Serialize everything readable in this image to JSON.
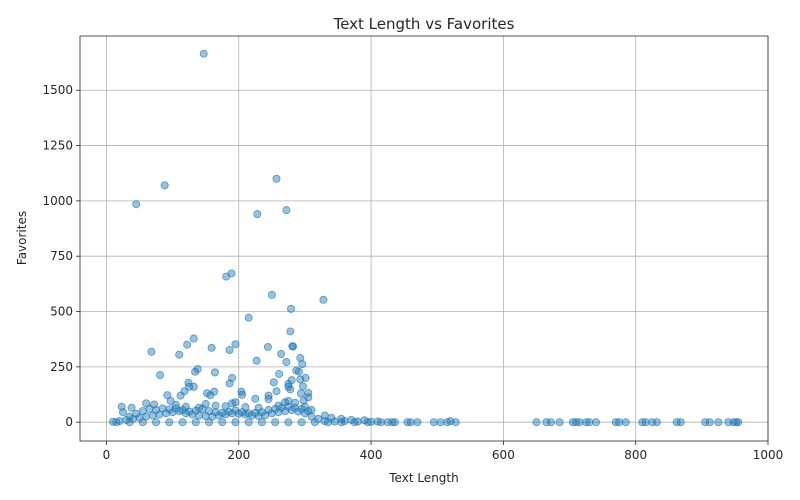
{
  "chart_data": {
    "type": "scatter",
    "title": "Text Length vs Favorites",
    "xlabel": "Text Length",
    "ylabel": "Favorites",
    "xlim": [
      -40,
      1000
    ],
    "ylim": [
      -85,
      1745
    ],
    "xticks": [
      0,
      200,
      400,
      600,
      800,
      1000
    ],
    "yticks": [
      0,
      250,
      500,
      750,
      1000,
      1250,
      1500
    ],
    "xtick_labels": [
      "0",
      "200",
      "400",
      "600",
      "800",
      "1000"
    ],
    "ytick_labels": [
      "0",
      "250",
      "500",
      "750",
      "1000",
      "1250",
      "1500"
    ],
    "grid": true,
    "marker_color": "#1f77b4",
    "marker_alpha": 0.45,
    "points": [
      [
        147,
        1665
      ],
      [
        257,
        1100
      ],
      [
        88,
        1070
      ],
      [
        45,
        985
      ],
      [
        228,
        940
      ],
      [
        272,
        958
      ],
      [
        189,
        672
      ],
      [
        181,
        658
      ],
      [
        250,
        575
      ],
      [
        328,
        553
      ],
      [
        279,
        512
      ],
      [
        215,
        472
      ],
      [
        278,
        410
      ],
      [
        132,
        378
      ],
      [
        281,
        343
      ],
      [
        282,
        342
      ],
      [
        195,
        352
      ],
      [
        244,
        340
      ],
      [
        122,
        350
      ],
      [
        159,
        336
      ],
      [
        68,
        318
      ],
      [
        110,
        305
      ],
      [
        186,
        326
      ],
      [
        264,
        308
      ],
      [
        293,
        290
      ],
      [
        296,
        262
      ],
      [
        272,
        272
      ],
      [
        227,
        278
      ],
      [
        138,
        240
      ],
      [
        134,
        228
      ],
      [
        164,
        225
      ],
      [
        261,
        218
      ],
      [
        81,
        213
      ],
      [
        287,
        234
      ],
      [
        291,
        228
      ],
      [
        301,
        200
      ],
      [
        190,
        200
      ],
      [
        293,
        193
      ],
      [
        280,
        190
      ],
      [
        253,
        180
      ],
      [
        124,
        178
      ],
      [
        275,
        173
      ],
      [
        186,
        175
      ],
      [
        275,
        160
      ],
      [
        297,
        162
      ],
      [
        125,
        160
      ],
      [
        132,
        160
      ],
      [
        278,
        148
      ],
      [
        257,
        140
      ],
      [
        118,
        140
      ],
      [
        163,
        138
      ],
      [
        204,
        138
      ],
      [
        305,
        132
      ],
      [
        152,
        131
      ],
      [
        294,
        130
      ],
      [
        205,
        124
      ],
      [
        157,
        122
      ],
      [
        112,
        120
      ],
      [
        92,
        122
      ],
      [
        245,
        120
      ],
      [
        225,
        106
      ],
      [
        305,
        112
      ],
      [
        245,
        105
      ],
      [
        298,
        98
      ],
      [
        97,
        96
      ],
      [
        275,
        96
      ],
      [
        60,
        85
      ],
      [
        72,
        80
      ],
      [
        150,
        82
      ],
      [
        190,
        85
      ],
      [
        195,
        90
      ],
      [
        270,
        90
      ],
      [
        285,
        88
      ],
      [
        105,
        78
      ],
      [
        165,
        75
      ],
      [
        120,
        70
      ],
      [
        23,
        70
      ],
      [
        38,
        65
      ],
      [
        140,
        65
      ],
      [
        180,
        72
      ],
      [
        210,
        68
      ],
      [
        230,
        65
      ],
      [
        260,
        75
      ],
      [
        300,
        70
      ],
      [
        310,
        55
      ],
      [
        330,
        30
      ],
      [
        340,
        20
      ],
      [
        355,
        15
      ],
      [
        370,
        10
      ],
      [
        390,
        8
      ],
      [
        10,
        2
      ],
      [
        20,
        5
      ],
      [
        30,
        10
      ],
      [
        40,
        15
      ],
      [
        50,
        20
      ],
      [
        60,
        25
      ],
      [
        70,
        30
      ],
      [
        80,
        35
      ],
      [
        90,
        40
      ],
      [
        100,
        45
      ],
      [
        110,
        50
      ],
      [
        120,
        40
      ],
      [
        130,
        35
      ],
      [
        140,
        30
      ],
      [
        150,
        28
      ],
      [
        160,
        25
      ],
      [
        170,
        30
      ],
      [
        180,
        35
      ],
      [
        190,
        40
      ],
      [
        200,
        38
      ],
      [
        210,
        35
      ],
      [
        220,
        30
      ],
      [
        230,
        28
      ],
      [
        240,
        32
      ],
      [
        250,
        40
      ],
      [
        260,
        45
      ],
      [
        270,
        50
      ],
      [
        280,
        55
      ],
      [
        290,
        48
      ],
      [
        300,
        40
      ],
      [
        310,
        25
      ],
      [
        320,
        15
      ],
      [
        25,
        45
      ],
      [
        35,
        25
      ],
      [
        45,
        38
      ],
      [
        55,
        50
      ],
      [
        65,
        60
      ],
      [
        75,
        55
      ],
      [
        85,
        62
      ],
      [
        95,
        58
      ],
      [
        105,
        62
      ],
      [
        115,
        55
      ],
      [
        125,
        48
      ],
      [
        135,
        52
      ],
      [
        145,
        60
      ],
      [
        155,
        50
      ],
      [
        165,
        45
      ],
      [
        175,
        42
      ],
      [
        185,
        48
      ],
      [
        195,
        52
      ],
      [
        205,
        45
      ],
      [
        215,
        40
      ],
      [
        225,
        42
      ],
      [
        235,
        45
      ],
      [
        245,
        55
      ],
      [
        255,
        60
      ],
      [
        265,
        65
      ],
      [
        275,
        70
      ],
      [
        285,
        65
      ],
      [
        295,
        60
      ],
      [
        305,
        50
      ],
      [
        15,
        0
      ],
      [
        35,
        0
      ],
      [
        55,
        0
      ],
      [
        75,
        0
      ],
      [
        95,
        0
      ],
      [
        115,
        0
      ],
      [
        135,
        0
      ],
      [
        155,
        0
      ],
      [
        175,
        0
      ],
      [
        195,
        0
      ],
      [
        215,
        0
      ],
      [
        235,
        0
      ],
      [
        255,
        0
      ],
      [
        275,
        0
      ],
      [
        295,
        0
      ],
      [
        315,
        0
      ],
      [
        335,
        0
      ],
      [
        355,
        0
      ],
      [
        375,
        0
      ],
      [
        395,
        0
      ],
      [
        330,
        5
      ],
      [
        345,
        3
      ],
      [
        360,
        5
      ],
      [
        380,
        3
      ],
      [
        400,
        2
      ],
      [
        410,
        3
      ],
      [
        415,
        0
      ],
      [
        425,
        0
      ],
      [
        432,
        0
      ],
      [
        436,
        0
      ],
      [
        455,
        0
      ],
      [
        460,
        0
      ],
      [
        470,
        0
      ],
      [
        495,
        0
      ],
      [
        505,
        0
      ],
      [
        515,
        0
      ],
      [
        520,
        5
      ],
      [
        528,
        0
      ],
      [
        650,
        0
      ],
      [
        665,
        0
      ],
      [
        672,
        0
      ],
      [
        685,
        0
      ],
      [
        705,
        0
      ],
      [
        710,
        0
      ],
      [
        715,
        0
      ],
      [
        725,
        0
      ],
      [
        730,
        0
      ],
      [
        740,
        0
      ],
      [
        770,
        0
      ],
      [
        775,
        0
      ],
      [
        785,
        0
      ],
      [
        810,
        0
      ],
      [
        815,
        0
      ],
      [
        825,
        0
      ],
      [
        832,
        0
      ],
      [
        862,
        0
      ],
      [
        868,
        0
      ],
      [
        905,
        0
      ],
      [
        912,
        0
      ],
      [
        925,
        0
      ],
      [
        940,
        0
      ],
      [
        948,
        0
      ],
      [
        952,
        0
      ],
      [
        955,
        0
      ]
    ]
  }
}
